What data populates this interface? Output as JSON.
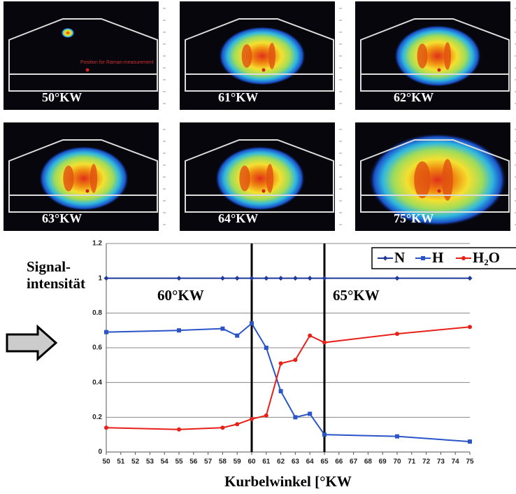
{
  "panels": [
    {
      "label": "50°KW",
      "note": "Position for Raman-measurement"
    },
    {
      "label": "61°KW"
    },
    {
      "label": "62°KW"
    },
    {
      "label": "63°KW"
    },
    {
      "label": "64°KW"
    },
    {
      "label": "75°KW"
    }
  ],
  "chart_data": {
    "type": "line",
    "ylabel_lines": [
      "Signal-",
      "intensität"
    ],
    "xlabel": "Kurbelwinkel [°KW",
    "annotations": [
      {
        "x": 60,
        "text": "60°KW"
      },
      {
        "x": 65,
        "text": "65°KW"
      }
    ],
    "x": [
      50,
      55,
      58,
      59,
      60,
      61,
      62,
      63,
      64,
      65,
      70,
      75
    ],
    "series": [
      {
        "name": "N",
        "color": "#1f3a9a",
        "marker": "diamond",
        "values": [
          1,
          1,
          1,
          1,
          1,
          1,
          1,
          1,
          1,
          1,
          1,
          1
        ]
      },
      {
        "name": "H",
        "color": "#2a54c8",
        "marker": "square",
        "values": [
          0.69,
          0.7,
          0.71,
          0.67,
          0.74,
          0.6,
          0.35,
          0.2,
          0.22,
          0.1,
          0.09,
          0.06
        ]
      },
      {
        "name": "H₂O",
        "color": "#e8201a",
        "marker": "circle",
        "values": [
          0.14,
          0.13,
          0.14,
          0.16,
          0.19,
          0.21,
          0.51,
          0.53,
          0.67,
          0.63,
          0.68,
          0.72
        ]
      }
    ],
    "xlim": [
      50,
      75
    ],
    "xticks": [
      50,
      51,
      52,
      53,
      54,
      55,
      56,
      57,
      58,
      59,
      60,
      61,
      62,
      63,
      64,
      65,
      66,
      67,
      68,
      69,
      70,
      71,
      72,
      73,
      74,
      75
    ],
    "ylim": [
      0,
      1.2
    ],
    "yticks": [
      0,
      0.2,
      0.4,
      0.6,
      0.8,
      1,
      1.2
    ],
    "grid": true,
    "legend": "top-right"
  }
}
